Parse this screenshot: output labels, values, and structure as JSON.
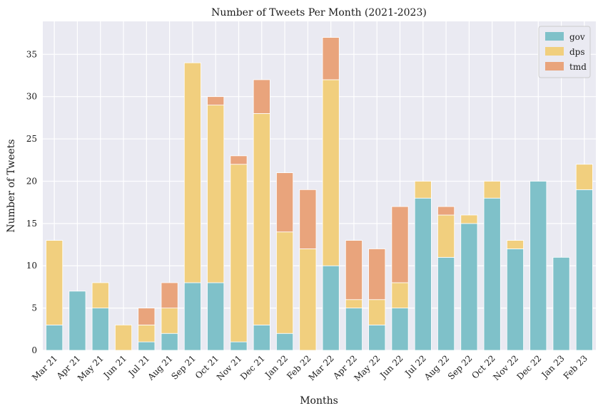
{
  "chart_data": {
    "type": "bar",
    "stacked": true,
    "title": "Number of Tweets Per Month (2021-2023)",
    "xlabel": "Months",
    "ylabel": "Number of Tweets",
    "ylim": [
      0,
      38.9
    ],
    "yticks": [
      0,
      5,
      10,
      15,
      20,
      25,
      30,
      35
    ],
    "grid": true,
    "legend_position": "top-right",
    "categories": [
      "Mar 21",
      "Apr 21",
      "May 21",
      "Jun 21",
      "Jul 21",
      "Aug 21",
      "Sep 21",
      "Oct 21",
      "Nov 21",
      "Dec 21",
      "Jan 22",
      "Feb 22",
      "Mar 22",
      "Apr 22",
      "May 22",
      "Jun 22",
      "Jul 22",
      "Aug 22",
      "Sep 22",
      "Oct 22",
      "Nov 22",
      "Dec 22",
      "Jan 23",
      "Feb 23"
    ],
    "series": [
      {
        "name": "gov",
        "color": "#7fc1c9",
        "values": [
          3,
          7,
          5,
          0,
          1,
          2,
          8,
          8,
          1,
          3,
          2,
          0,
          10,
          5,
          3,
          5,
          18,
          11,
          15,
          18,
          12,
          20,
          11,
          19
        ]
      },
      {
        "name": "dps",
        "color": "#f1cf7e",
        "values": [
          10,
          0,
          3,
          3,
          2,
          3,
          26,
          21,
          21,
          25,
          12,
          12,
          22,
          1,
          3,
          3,
          2,
          5,
          1,
          2,
          1,
          0,
          0,
          3
        ]
      },
      {
        "name": "tmd",
        "color": "#e9a47c",
        "values": [
          0,
          0,
          0,
          0,
          2,
          3,
          0,
          1,
          1,
          4,
          7,
          7,
          5,
          7,
          6,
          9,
          0,
          1,
          0,
          0,
          0,
          0,
          0,
          0
        ]
      }
    ]
  }
}
